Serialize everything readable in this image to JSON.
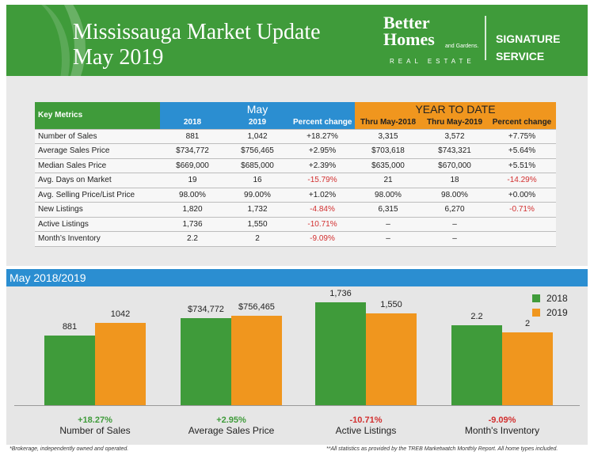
{
  "header": {
    "title_line1": "Mississauga Market Update",
    "title_line2": "May 2019",
    "brand_line1": "Better",
    "brand_line2": "Homes",
    "brand_line3": "and Gardens.",
    "brand_line4": "REAL ESTATE",
    "signature_line1": "SIGNATURE",
    "signature_line2": "SERVICE"
  },
  "table": {
    "key_header": "Key Metrics",
    "may_header": "May",
    "ytd_header": "YEAR TO DATE",
    "subheaders": [
      "2018",
      "2019",
      "Percent change",
      "Thru May-2018",
      "Thru May-2019",
      "Percent change"
    ],
    "rows": [
      {
        "metric": "Number of Sales",
        "cells": [
          "881",
          "1,042",
          "+18.27%",
          "3,315",
          "3,572",
          "+7.75%"
        ]
      },
      {
        "metric": "Average Sales Price",
        "cells": [
          "$734,772",
          "$756,465",
          "+2.95%",
          "$703,618",
          "$743,321",
          "+5.64%"
        ]
      },
      {
        "metric": "Median Sales Price",
        "cells": [
          "$669,000",
          "$685,000",
          "+2.39%",
          "$635,000",
          "$670,000",
          "+5.51%"
        ]
      },
      {
        "metric": "Avg. Days on Market",
        "cells": [
          "19",
          "16",
          "-15.79%",
          "21",
          "18",
          "-14.29%"
        ]
      },
      {
        "metric": "Avg. Selling Price/List Price",
        "cells": [
          "98.00%",
          "99.00%",
          "+1.02%",
          "98.00%",
          "98.00%",
          "+0.00%"
        ]
      },
      {
        "metric": "New Listings",
        "cells": [
          "1,820",
          "1,732",
          "-4.84%",
          "6,315",
          "6,270",
          "-0.71%"
        ]
      },
      {
        "metric": "Active Listings",
        "cells": [
          "1,736",
          "1,550",
          "-10.71%",
          "–",
          "–",
          ""
        ]
      },
      {
        "metric": "Month’s Inventory",
        "cells": [
          "2.2",
          "2",
          "-9.09%",
          "–",
          "–",
          ""
        ]
      }
    ]
  },
  "chart_title": "May 2018/2019",
  "colors": {
    "green": "#3f9b3a",
    "orange": "#f0961e",
    "blue": "#2b8ed1",
    "negative": "#d22f2f"
  },
  "chart_data": {
    "type": "bar",
    "title": "May 2018/2019",
    "categories": [
      "Number of Sales",
      "Average Sales Price",
      "Active Listings",
      "Month's Inventory"
    ],
    "series": [
      {
        "name": "2018",
        "values": [
          881,
          734772,
          1736,
          2.2
        ],
        "labels": [
          "881",
          "$734,772",
          "1,736",
          "2.2"
        ]
      },
      {
        "name": "2019",
        "values": [
          1042,
          756465,
          1550,
          2
        ],
        "labels": [
          "1042",
          "$756,465",
          "1,550",
          "2"
        ]
      }
    ],
    "changes": [
      "+18.27%",
      "+2.95%",
      "-10.71%",
      "-9.09%"
    ],
    "legend": "top-right",
    "independent_scales": true,
    "grid": false
  },
  "footer": {
    "left": "*Brokerage, independently owned and operated.",
    "right": "**All statistics as provided by the TREB Marketwatch Monthly Report. All home types included."
  }
}
